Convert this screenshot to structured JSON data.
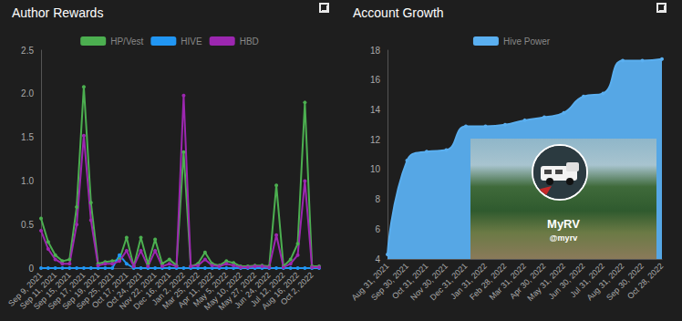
{
  "chart_data": [
    {
      "type": "line",
      "title": "Author Rewards",
      "categories": [
        "Sep 9, 2021",
        null,
        "Sep 11, 2021",
        null,
        "Sep 15, 2021",
        null,
        "Sep 17, 2021",
        null,
        "Sep 19, 2021",
        null,
        "Sep 25, 2021",
        null,
        "Oct 17, 2021",
        null,
        "Oct 24, 2021",
        null,
        "Nov 22, 2021",
        null,
        "Dec 16, 2021",
        null,
        "Jan 2, 2022",
        null,
        "Mar 25, 2022",
        null,
        "Apr 11, 2022",
        null,
        "May 5, 2022",
        null,
        "May 10, 2022",
        null,
        "May 27, 2022",
        null,
        "Jun 24, 2022",
        null,
        "Jul 12, 2022",
        null,
        "Aug 16, 2022",
        null,
        "Oct 2, 2022",
        null
      ],
      "series": [
        {
          "name": "HP/Vest",
          "color": "#4caf50",
          "values": [
            0.57,
            0.3,
            0.15,
            0.08,
            0.1,
            0.7,
            2.08,
            0.75,
            0.05,
            0.07,
            0.08,
            0.1,
            0.35,
            0.02,
            0.35,
            0.05,
            0.33,
            0.05,
            0.1,
            0.03,
            1.33,
            0.02,
            0.05,
            0.18,
            0.05,
            0.03,
            0.08,
            0.06,
            0.02,
            0.02,
            0.03,
            0.03,
            0.02,
            0.95,
            0.02,
            0.1,
            0.28,
            1.9,
            0.02,
            0.02
          ]
        },
        {
          "name": "HIVE",
          "color": "#2196f3",
          "values": [
            0,
            0,
            0,
            0,
            0,
            0,
            0,
            0,
            0,
            0,
            0,
            0.15,
            0.05,
            0,
            0,
            0,
            0,
            0,
            0,
            0,
            0,
            0,
            0,
            0,
            0,
            0,
            0,
            0,
            0,
            0,
            0,
            0,
            0,
            0,
            0,
            0,
            0,
            0,
            0,
            0
          ]
        },
        {
          "name": "HBD",
          "color": "#9c27b0",
          "values": [
            0.43,
            0.22,
            0.1,
            0.05,
            0.05,
            0.5,
            1.52,
            0.55,
            0.03,
            0.05,
            0.05,
            0.08,
            0.2,
            0.02,
            0.2,
            0.02,
            0.2,
            0.02,
            0.05,
            0.02,
            1.98,
            0.02,
            0.03,
            0.1,
            0.03,
            0.02,
            0.05,
            0.03,
            0.01,
            0.01,
            0.02,
            0.02,
            0.01,
            0.38,
            0.01,
            0.05,
            0.15,
            1.0,
            0.01,
            0.01
          ]
        }
      ],
      "ylim": [
        0,
        2.5
      ],
      "yticks": [
        0,
        0.5,
        {
          "value": 1,
          "label": "1.0"
        },
        1.5,
        {
          "value": 2,
          "label": "2.0"
        },
        2.5
      ],
      "grid": false,
      "legend": "top",
      "marker": "circle"
    },
    {
      "type": "area",
      "title": "Account Growth",
      "categories": [
        "Aug 31, 2021",
        "Sep 30, 2021",
        "Oct 31, 2021",
        "Nov 30, 2021",
        "Dec 31, 2021",
        "Jan 31, 2022",
        "Feb 28, 2022",
        "Mar 31, 2022",
        "Apr 30, 2022",
        "May 31, 2022",
        "Jun 30, 2022",
        "Jul 31, 2022",
        "Aug 31, 2022",
        "Sep 30, 2022",
        "Oct 28, 2022"
      ],
      "series": [
        {
          "name": "Hive Power",
          "color": "#5aaff0",
          "values": [
            4.3,
            10.6,
            11.2,
            11.3,
            12.9,
            12.9,
            13.0,
            13.3,
            13.5,
            13.8,
            14.9,
            15.1,
            17.3,
            17.3,
            17.4
          ]
        }
      ],
      "ylim": [
        4,
        18
      ],
      "yticks": [
        4,
        6,
        8,
        10,
        12,
        14,
        16,
        18
      ],
      "grid": false,
      "legend": "top",
      "marker": "circle"
    }
  ],
  "profile_card": {
    "name": "MyRV",
    "handle": "@myrv"
  }
}
